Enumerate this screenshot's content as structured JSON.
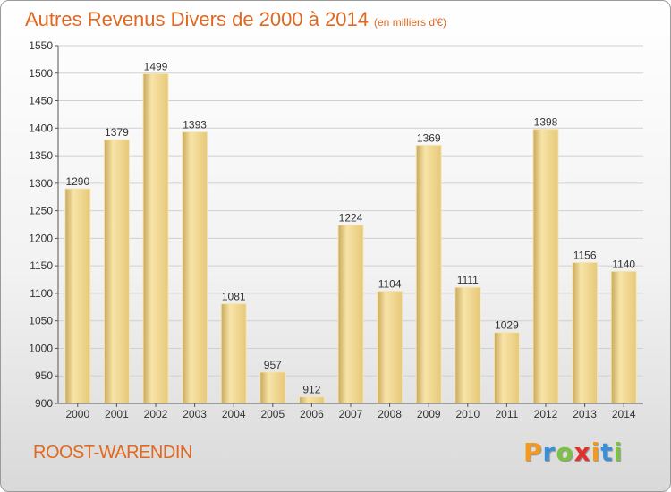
{
  "page": {
    "title": "Autres Revenus Divers de 2000 à 2014",
    "unit": "(en milliers d'€)",
    "place": "ROOST-WARENDIN",
    "logo": {
      "letters": [
        "P",
        "r",
        "o",
        "x",
        "i",
        "t",
        "i"
      ],
      "colors": [
        "#f39a1e",
        "#3a8fd6",
        "#7cc242",
        "#e2312d",
        "#f39a1e",
        "#3a8fd6",
        "#7cc242"
      ]
    }
  },
  "chart_data": {
    "type": "bar",
    "title": "Autres Revenus Divers de 2000 à 2014",
    "subtitle": "(en milliers d'€)",
    "categories": [
      "2000",
      "2001",
      "2002",
      "2003",
      "2004",
      "2005",
      "2006",
      "2007",
      "2008",
      "2009",
      "2010",
      "2011",
      "2012",
      "2013",
      "2014"
    ],
    "values": [
      1290,
      1379,
      1499,
      1393,
      1081,
      957,
      912,
      1224,
      1104,
      1369,
      1111,
      1029,
      1398,
      1156,
      1140
    ],
    "ylim": [
      900,
      1550
    ],
    "yticks": [
      900,
      950,
      1000,
      1050,
      1100,
      1150,
      1200,
      1250,
      1300,
      1350,
      1400,
      1450,
      1500,
      1550
    ],
    "grid": true,
    "colors": {
      "bar": "#e6c878",
      "bar_light": "#f8e4a8",
      "bar_dark": "#c9a85a"
    }
  }
}
